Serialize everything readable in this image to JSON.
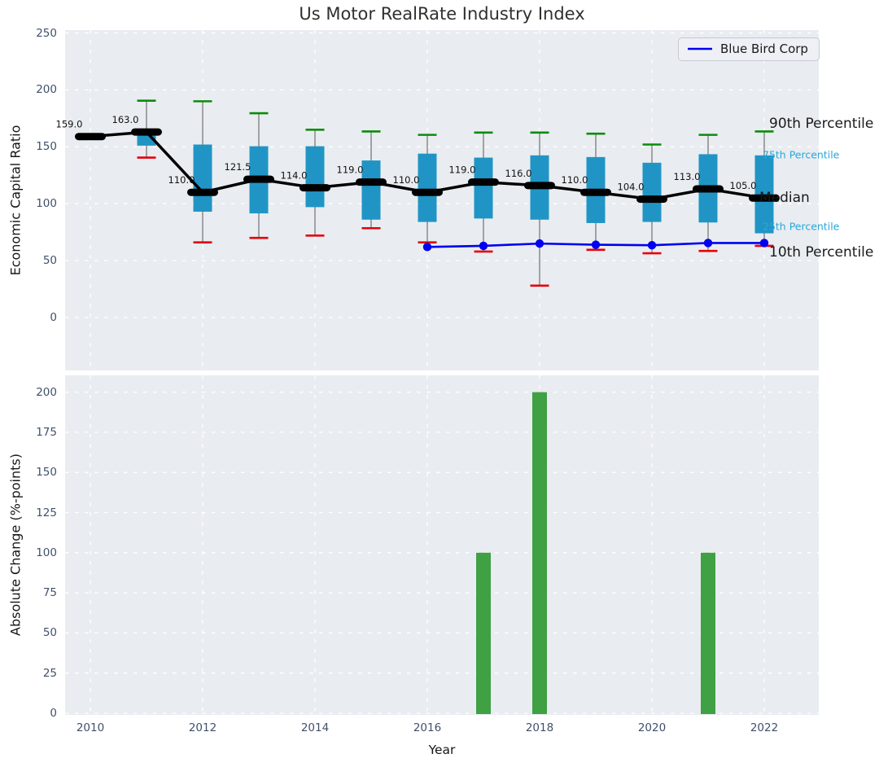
{
  "title": "Us Motor RealRate Industry Index",
  "legend": {
    "label": "Blue Bird Corp",
    "line_color": "#0000f0"
  },
  "colors": {
    "plot_bg": "#e9edf1",
    "grid": "#ffffff",
    "box_fill": "#2095c5",
    "whisker": "#7a7a7a",
    "p90_cap": "#0a8c0a",
    "p10_cap": "#e50008",
    "median": "#000000",
    "company_line": "#0000f0",
    "bar_fill": "#3fa044",
    "tick_text": "#40506a",
    "cyan_label": "#29a7d8",
    "black_label": "#1a1a1a"
  },
  "chart_data": [
    {
      "type": "boxplot+line",
      "title": "Us Motor RealRate Industry Index",
      "ylabel": "Economic Capital Ratio",
      "xlabel": "",
      "ylim": [
        -46.5,
        252.5
      ],
      "grid": true,
      "yticks": [
        0,
        50,
        100,
        150,
        200,
        250
      ],
      "xticks": [
        2010,
        2012,
        2014,
        2016,
        2018,
        2020,
        2022
      ],
      "years": [
        2010,
        2011,
        2012,
        2013,
        2014,
        2015,
        2016,
        2017,
        2018,
        2019,
        2020,
        2021,
        2022
      ],
      "median": [
        159.0,
        163.0,
        110.0,
        121.5,
        114.0,
        119.0,
        110.0,
        119.0,
        116.0,
        110.0,
        104.0,
        113.0,
        105.0
      ],
      "q75": [
        160,
        162,
        152,
        150.5,
        150.5,
        138,
        144,
        140.5,
        142.5,
        141,
        136,
        143.5,
        142.5
      ],
      "q25": [
        158,
        151,
        93,
        91.5,
        97,
        86,
        84,
        87,
        86,
        83,
        84,
        83.5,
        74
      ],
      "p90": [
        161,
        190.5,
        190,
        179.5,
        165,
        163.5,
        160.5,
        162.5,
        162.5,
        161.5,
        152,
        160.5,
        163.5
      ],
      "p10": [
        158.5,
        140.5,
        66,
        70,
        72,
        78.5,
        66,
        58,
        28,
        59.5,
        56.5,
        58.5,
        63
      ],
      "series": [
        {
          "name": "Blue Bird Corp",
          "x": [
            2016,
            2017,
            2018,
            2019,
            2020,
            2021,
            2022
          ],
          "y": [
            62,
            63,
            65,
            64,
            63.5,
            65.5,
            65.5
          ]
        }
      ],
      "legend_position": "upper right",
      "right_labels": [
        {
          "id": "p90",
          "text": "90th Percentile",
          "color": "#1a1a1a",
          "size": 17
        },
        {
          "id": "p75",
          "text": "75th Percentile",
          "color": "#29a7d8",
          "size": 12.5
        },
        {
          "id": "med",
          "text": "Median",
          "color": "#1a1a1a",
          "size": 17
        },
        {
          "id": "p25",
          "text": "25th Percentile",
          "color": "#29a7d8",
          "size": 12.5
        },
        {
          "id": "p10",
          "text": "10th Percentile",
          "color": "#1a1a1a",
          "size": 17
        }
      ]
    },
    {
      "type": "bar",
      "title": "",
      "ylabel": "Absolute Change (%-points)",
      "xlabel": "Year",
      "ylim": [
        0,
        210
      ],
      "grid": true,
      "yticks": [
        0,
        25,
        50,
        75,
        100,
        125,
        150,
        175,
        200
      ],
      "xticks": [
        2010,
        2012,
        2014,
        2016,
        2018,
        2020,
        2022
      ],
      "categories": [
        2010,
        2011,
        2012,
        2013,
        2014,
        2015,
        2016,
        2017,
        2018,
        2019,
        2020,
        2021,
        2022
      ],
      "values": [
        0,
        0,
        0,
        0,
        0,
        0,
        0,
        100,
        200,
        0,
        0,
        100,
        0
      ]
    }
  ]
}
